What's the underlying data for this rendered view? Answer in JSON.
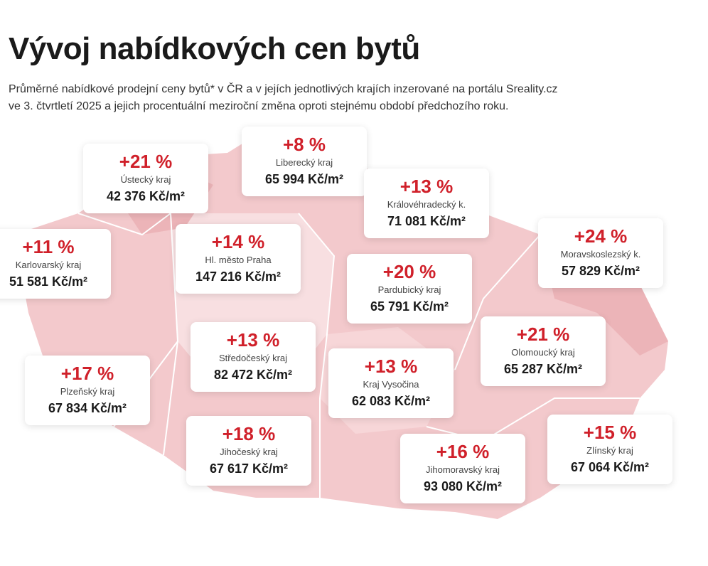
{
  "header": {
    "title": "Vývoj nabídkových cen bytů",
    "subtitle_lines": [
      "Průměrné nabídkové prodejní ceny bytů* v ČR a v jejích jednotlivých krajích inzerované na portálu Sreality.cz",
      "ve 3. čtvrtletí 2025 a jejich procentuální meziroční změna oproti stejnému období předchozího roku."
    ]
  },
  "regions": [
    {
      "change": "+21 %",
      "name": "Ústecký kraj",
      "price": "42 376 Kč/m²"
    },
    {
      "change": "+8 %",
      "name": "Liberecký kraj",
      "price": "65 994 Kč/m²"
    },
    {
      "change": "+13 %",
      "name": "Královéhradecký k.",
      "price": "71 081 Kč/m²"
    },
    {
      "change": "+11 %",
      "name": "Karlovarský kraj",
      "price": "51 581 Kč/m²"
    },
    {
      "change": "+14 %",
      "name": "Hl. město Praha",
      "price": "147 216 Kč/m²"
    },
    {
      "change": "+24 %",
      "name": "Moravskoslezský k.",
      "price": "57 829 Kč/m²"
    },
    {
      "change": "+20 %",
      "name": "Pardubický kraj",
      "price": "65 791 Kč/m²"
    },
    {
      "change": "+13 %",
      "name": "Středočeský kraj",
      "price": "82 472 Kč/m²"
    },
    {
      "change": "+21 %",
      "name": "Olomoucký kraj",
      "price": "65 287 Kč/m²"
    },
    {
      "change": "+17 %",
      "name": "Plzeňský kraj",
      "price": "67 834 Kč/m²"
    },
    {
      "change": "+13 %",
      "name": "Kraj Vysočina",
      "price": "62 083 Kč/m²"
    },
    {
      "change": "+18 %",
      "name": "Jihočeský kraj",
      "price": "67 617 Kč/m²"
    },
    {
      "change": "+15 %",
      "name": "Zlínský kraj",
      "price": "67 064 Kč/m²"
    },
    {
      "change": "+16 %",
      "name": "Jihomoravský kraj",
      "price": "93 080 Kč/m²"
    }
  ]
}
